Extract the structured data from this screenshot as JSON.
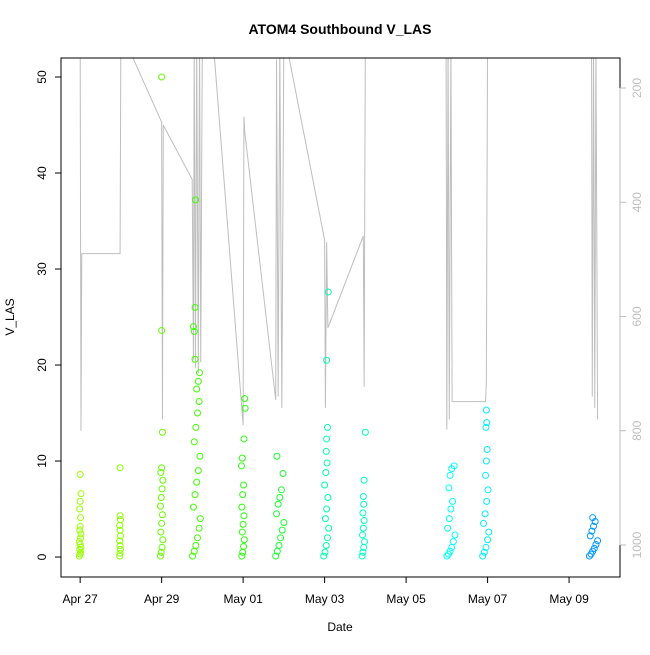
{
  "chart_data": {
    "type": "scatter",
    "title": "ATOM4 Southbound V_LAS",
    "x_label": "Date",
    "y_label": "V_LAS",
    "xlim": [
      -0.47,
      13.25
    ],
    "ylim": [
      -2.08,
      51.98
    ],
    "y2lim": [
      1056,
      147.5
    ],
    "xticks": [
      {
        "value": 0,
        "label": "Apr 27"
      },
      {
        "value": 2,
        "label": "Apr 29"
      },
      {
        "value": 4,
        "label": "May 01"
      },
      {
        "value": 6,
        "label": "May 03"
      },
      {
        "value": 8,
        "label": "May 05"
      },
      {
        "value": 10,
        "label": "May 07"
      },
      {
        "value": 12,
        "label": "May 09"
      }
    ],
    "yticks": [
      0,
      10,
      20,
      30,
      40,
      50
    ],
    "y2ticks": [
      200,
      400,
      600,
      800,
      1000
    ],
    "series": [
      {
        "color": "#99ff00",
        "x": [
          -0.02,
          0.0,
          0.01,
          -0.01,
          0.02,
          0.0,
          -0.02,
          0.01,
          0.02,
          -0.01,
          0.0,
          0.01,
          -0.01,
          0.0,
          0.02,
          0.0
        ],
        "values": [
          0.1,
          0.3,
          0.5,
          0.8,
          1.0,
          1.3,
          1.6,
          2.0,
          2.4,
          2.8,
          3.2,
          4.1,
          5.0,
          5.8,
          6.6,
          8.6
        ]
      },
      {
        "color": "#8cff00",
        "x": [
          0.97,
          0.98,
          0.99,
          0.98,
          0.97,
          0.99,
          0.98,
          0.97,
          0.99,
          0.98,
          0.98
        ],
        "values": [
          0.1,
          0.4,
          0.8,
          1.2,
          1.7,
          2.2,
          2.8,
          3.3,
          3.9,
          4.3,
          9.3
        ]
      },
      {
        "color": "#66ff00",
        "x": [
          1.97,
          1.99,
          2.01,
          2.03,
          1.98,
          2.0,
          2.02,
          1.97,
          1.99,
          2.01,
          2.03,
          1.98,
          2.0,
          2.02,
          2.0,
          2.0
        ],
        "values": [
          0.1,
          0.5,
          1.0,
          1.8,
          2.6,
          3.5,
          4.4,
          5.3,
          6.2,
          7.1,
          8.0,
          8.8,
          9.3,
          13.0,
          23.6,
          50.0
        ]
      },
      {
        "color": "#40ff00",
        "x": [
          2.76,
          2.8,
          2.84,
          2.88,
          2.92,
          2.95,
          2.78,
          2.82,
          2.86,
          2.9,
          2.94,
          2.8,
          2.84,
          2.88,
          2.92,
          2.86,
          2.9,
          2.93,
          2.82,
          2.8,
          2.78,
          2.82,
          2.83
        ],
        "values": [
          0.1,
          0.6,
          1.2,
          2.0,
          3.0,
          4.0,
          5.2,
          6.5,
          7.8,
          9.0,
          10.5,
          12.0,
          13.5,
          15.0,
          16.2,
          17.5,
          18.3,
          19.2,
          20.6,
          23.5,
          24.0,
          26.0,
          37.2
        ]
      },
      {
        "color": "#2bff10",
        "x": [
          3.97,
          3.99,
          4.01,
          4.03,
          3.98,
          4.0,
          4.02,
          3.97,
          3.99,
          4.01,
          3.96,
          3.98,
          4.02,
          4.05,
          4.04
        ],
        "values": [
          0.1,
          0.5,
          1.1,
          1.8,
          2.6,
          3.4,
          4.3,
          5.2,
          6.5,
          7.5,
          9.5,
          10.3,
          12.3,
          15.5,
          16.5
        ]
      },
      {
        "color": "#1aff33",
        "x": [
          4.8,
          4.84,
          4.88,
          4.92,
          4.96,
          5.0,
          4.82,
          4.86,
          4.9,
          4.94,
          4.98,
          4.83
        ],
        "values": [
          0.1,
          0.6,
          1.2,
          2.0,
          2.8,
          3.6,
          4.5,
          5.5,
          6.2,
          7.0,
          8.7,
          10.5
        ]
      },
      {
        "color": "#00ffaa",
        "x": [
          5.98,
          6.01,
          6.04,
          6.07,
          6.1,
          6.02,
          6.05,
          6.08,
          6.0,
          6.03,
          6.06,
          6.04,
          6.05,
          6.07,
          6.05,
          6.09
        ],
        "values": [
          0.1,
          0.5,
          1.2,
          2.0,
          3.0,
          4.0,
          5.0,
          6.2,
          7.5,
          8.8,
          9.8,
          11.0,
          12.3,
          13.5,
          20.5,
          27.6
        ]
      },
      {
        "color": "#00ffc8",
        "x": [
          6.92,
          6.94,
          6.96,
          6.98,
          6.93,
          6.95,
          6.97,
          6.94,
          6.96,
          6.95,
          6.97,
          7.0
        ],
        "values": [
          0.1,
          0.5,
          1.0,
          1.6,
          2.3,
          3.0,
          3.8,
          4.6,
          5.5,
          6.3,
          8.0,
          13.0
        ]
      },
      {
        "color": "#00ffff",
        "x": [
          9.0,
          9.04,
          9.08,
          9.12,
          9.16,
          9.2,
          9.02,
          9.06,
          9.1,
          9.14,
          9.05,
          9.08,
          9.12,
          9.18
        ],
        "values": [
          0.1,
          0.3,
          0.6,
          1.0,
          1.6,
          2.3,
          3.0,
          4.0,
          5.0,
          5.8,
          7.2,
          8.5,
          9.2,
          9.5
        ]
      },
      {
        "color": "#00eeff",
        "x": [
          9.88,
          9.92,
          9.96,
          10.0,
          10.03,
          9.9,
          9.94,
          9.98,
          10.01,
          9.95,
          9.97,
          9.99,
          9.96,
          9.98,
          9.97
        ],
        "values": [
          0.1,
          0.5,
          1.0,
          1.8,
          2.6,
          3.5,
          4.5,
          5.8,
          7.0,
          8.5,
          10.0,
          11.2,
          13.5,
          14.0,
          15.3
        ]
      },
      {
        "color": "#0099ff",
        "x": [
          12.5,
          12.54,
          12.58,
          12.62,
          12.66,
          12.7,
          12.52,
          12.56,
          12.6,
          12.64,
          12.58
        ],
        "values": [
          0.1,
          0.3,
          0.6,
          0.9,
          1.3,
          1.7,
          2.2,
          2.7,
          3.2,
          3.7,
          4.1
        ]
      },
      {
        "type": "line",
        "axis": "y2",
        "color": "#bebebe",
        "x": [
          0.0,
          0.02,
          0.04,
          0.98,
          1.0,
          1.25,
          2.0,
          2.02,
          2.04,
          2.75,
          2.78,
          2.8,
          2.83,
          2.86,
          2.9,
          2.93,
          2.96,
          3.0,
          3.3,
          4.0,
          4.02,
          4.04,
          4.8,
          4.82,
          4.86,
          4.9,
          4.95,
          5.0,
          6.0,
          6.02,
          6.05,
          6.08,
          6.95,
          6.97,
          7.0,
          7.05,
          8.98,
          9.0,
          9.03,
          9.06,
          9.1,
          9.13,
          9.15,
          9.95,
          9.97,
          10.0,
          10.05,
          12.55,
          12.57,
          12.6,
          12.63,
          12.66,
          12.7
        ],
        "values": [
          100,
          800,
          490,
          490,
          100,
          140,
          260,
          780,
          265,
          360,
          676,
          120,
          690,
          130,
          700,
          110,
          680,
          100,
          150,
          790,
          250,
          277,
          746,
          150,
          740,
          120,
          760,
          100,
          466,
          760,
          470,
          620,
          459,
          723,
          100,
          100,
          100,
          798,
          100,
          780,
          120,
          749,
          749,
          749,
          711,
          100,
          100,
          100,
          740,
          110,
          760,
          120,
          780
        ]
      }
    ]
  }
}
